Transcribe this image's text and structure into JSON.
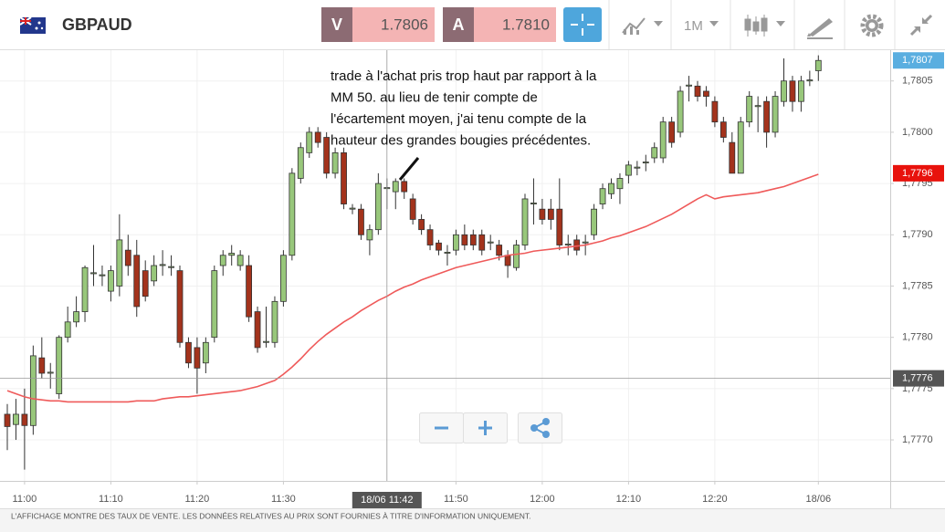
{
  "header": {
    "symbol": "GBPAUD",
    "sell_label": "V",
    "sell_price": "1.7806",
    "buy_label": "A",
    "buy_price": "1.7810",
    "timeframe": "1M"
  },
  "chart_data": {
    "type": "candlestick",
    "x": [
      "10:58",
      "10:59",
      "11:00",
      "11:01",
      "11:02",
      "11:03",
      "11:04",
      "11:05",
      "11:06",
      "11:07",
      "11:08",
      "11:09",
      "11:10",
      "11:11",
      "11:12",
      "11:13",
      "11:14",
      "11:15",
      "11:16",
      "11:17",
      "11:18",
      "11:19",
      "11:20",
      "11:21",
      "11:22",
      "11:23",
      "11:24",
      "11:25",
      "11:26",
      "11:27",
      "11:28",
      "11:29",
      "11:30",
      "11:31",
      "11:32",
      "11:33",
      "11:34",
      "11:35",
      "11:36",
      "11:37",
      "11:38",
      "11:39",
      "11:40",
      "11:41",
      "11:42",
      "11:43",
      "11:44",
      "11:45",
      "11:46",
      "11:47",
      "11:48",
      "11:49",
      "11:50",
      "11:51",
      "11:52",
      "11:53",
      "11:54",
      "11:55",
      "11:56",
      "11:57",
      "11:58",
      "11:59",
      "12:00",
      "12:01",
      "12:02",
      "12:03",
      "12:04",
      "12:05",
      "12:06",
      "12:07",
      "12:08",
      "12:09",
      "12:10",
      "12:11",
      "12:12",
      "12:13",
      "12:14",
      "12:15",
      "12:16",
      "12:17",
      "12:18",
      "12:19",
      "12:20",
      "12:21",
      "12:22",
      "12:23",
      "12:24",
      "12:25",
      "12:26",
      "12:27",
      "12:28",
      "12:29",
      "12:30",
      "12:31",
      "12:32"
    ],
    "open": [
      1.77725,
      1.77715,
      1.77725,
      1.77714,
      1.7778,
      1.77765,
      1.77745,
      1.778,
      1.77815,
      1.77825,
      1.77862,
      1.7786,
      1.77845,
      1.7785,
      1.77885,
      1.7788,
      1.77865,
      1.77855,
      1.7787,
      1.77868,
      1.77865,
      1.77795,
      1.7779,
      1.77775,
      1.778,
      1.7787,
      1.7788,
      1.7787,
      1.7787,
      1.77825,
      1.77795,
      1.77795,
      1.77835,
      1.7788,
      1.77955,
      1.7798,
      1.78,
      1.77995,
      1.7796,
      1.7798,
      1.77925,
      1.77925,
      1.77895,
      1.77905,
      1.77945,
      1.77942,
      1.77952,
      1.77935,
      1.77915,
      1.77905,
      1.77892,
      1.77882,
      1.77885,
      1.779,
      1.779,
      1.779,
      1.77892,
      1.7789,
      1.7788,
      1.77868,
      1.7789,
      1.7793,
      1.77925,
      1.77925,
      1.77925,
      1.7789,
      1.77895,
      1.77892,
      1.779,
      1.7793,
      1.7794,
      1.77945,
      1.77958,
      1.77965,
      1.7797,
      1.77975,
      1.77975,
      1.7801,
      1.78,
      1.78045,
      1.78045,
      1.7804,
      1.7803,
      1.7801,
      1.7799,
      1.7796,
      1.7801,
      1.78025,
      1.7803,
      1.78,
      1.7803,
      1.7805,
      1.7803,
      1.7805,
      1.7806
    ],
    "high": [
      1.77735,
      1.7774,
      1.7775,
      1.77792,
      1.778,
      1.77775,
      1.77802,
      1.7783,
      1.7784,
      1.7787,
      1.7789,
      1.7787,
      1.7787,
      1.7792,
      1.779,
      1.77895,
      1.77875,
      1.7788,
      1.77885,
      1.7788,
      1.7787,
      1.778,
      1.778,
      1.778,
      1.7787,
      1.77885,
      1.7789,
      1.77885,
      1.7788,
      1.7783,
      1.7783,
      1.7784,
      1.77885,
      1.77965,
      1.7799,
      1.78005,
      1.78005,
      1.78,
      1.77985,
      1.77985,
      1.7793,
      1.7793,
      1.7791,
      1.7796,
      1.77955,
      1.77955,
      1.77955,
      1.7794,
      1.7792,
      1.7791,
      1.77895,
      1.7789,
      1.77905,
      1.7791,
      1.77905,
      1.77905,
      1.779,
      1.77895,
      1.77885,
      1.77895,
      1.7794,
      1.77955,
      1.77935,
      1.77935,
      1.77955,
      1.779,
      1.779,
      1.779,
      1.7793,
      1.7795,
      1.77955,
      1.7796,
      1.77972,
      1.77972,
      1.77978,
      1.7799,
      1.78015,
      1.78015,
      1.78045,
      1.78055,
      1.7805,
      1.78045,
      1.78035,
      1.78015,
      1.78,
      1.78015,
      1.7804,
      1.78035,
      1.78035,
      1.7804,
      1.78072,
      1.78055,
      1.78055,
      1.7806,
      1.78075
    ],
    "low": [
      1.7769,
      1.777,
      1.77671,
      1.77705,
      1.7776,
      1.7775,
      1.7774,
      1.77795,
      1.7781,
      1.77815,
      1.7785,
      1.7785,
      1.77835,
      1.7784,
      1.7786,
      1.7782,
      1.77835,
      1.7785,
      1.7786,
      1.7786,
      1.7779,
      1.7777,
      1.77745,
      1.77765,
      1.77795,
      1.7786,
      1.7787,
      1.77865,
      1.77815,
      1.77785,
      1.7779,
      1.7779,
      1.7783,
      1.77875,
      1.7795,
      1.77975,
      1.77985,
      1.77955,
      1.77955,
      1.77925,
      1.7792,
      1.77895,
      1.7788,
      1.779,
      1.77925,
      1.77925,
      1.77935,
      1.7791,
      1.779,
      1.77885,
      1.7788,
      1.7787,
      1.7788,
      1.77885,
      1.77885,
      1.7788,
      1.77885,
      1.77875,
      1.77858,
      1.77865,
      1.77885,
      1.7791,
      1.7791,
      1.77905,
      1.77885,
      1.7788,
      1.7788,
      1.7788,
      1.77895,
      1.77925,
      1.77935,
      1.7793,
      1.7795,
      1.77958,
      1.77962,
      1.7797,
      1.7797,
      1.77985,
      1.77995,
      1.7803,
      1.7803,
      1.78025,
      1.78005,
      1.7799,
      1.7796,
      1.7796,
      1.78005,
      1.78,
      1.77985,
      1.77995,
      1.78025,
      1.7802,
      1.7802,
      1.78045,
      1.7805
    ],
    "close": [
      1.77713,
      1.77725,
      1.77714,
      1.77782,
      1.77765,
      1.77766,
      1.778,
      1.77815,
      1.77825,
      1.77868,
      1.77863,
      1.77861,
      1.77865,
      1.77895,
      1.7787,
      1.7783,
      1.7784,
      1.7787,
      1.77871,
      1.77869,
      1.77795,
      1.77775,
      1.7777,
      1.77795,
      1.77865,
      1.7788,
      1.77882,
      1.7788,
      1.7782,
      1.7779,
      1.77796,
      1.77835,
      1.7788,
      1.7796,
      1.77985,
      1.78,
      1.7799,
      1.7796,
      1.7798,
      1.7793,
      1.77926,
      1.779,
      1.77905,
      1.7795,
      1.77946,
      1.77952,
      1.77942,
      1.77915,
      1.77905,
      1.7789,
      1.77885,
      1.77883,
      1.779,
      1.7789,
      1.7789,
      1.77885,
      1.77893,
      1.7788,
      1.7787,
      1.7789,
      1.77935,
      1.77931,
      1.77915,
      1.77915,
      1.7789,
      1.77891,
      1.77885,
      1.77893,
      1.77925,
      1.77945,
      1.7795,
      1.77955,
      1.77968,
      1.77966,
      1.77971,
      1.77985,
      1.7801,
      1.7799,
      1.7804,
      1.78046,
      1.78035,
      1.78035,
      1.7801,
      1.77995,
      1.7796,
      1.7801,
      1.78035,
      1.78026,
      1.78,
      1.78035,
      1.7805,
      1.7803,
      1.7805,
      1.78051,
      1.7807
    ],
    "up_color": "#98c77b",
    "down_color": "#a3331c",
    "ma": {
      "color": "#ef5a5a",
      "values": [
        1.77748,
        1.77745,
        1.77742,
        1.7774,
        1.77739,
        1.77738,
        1.77738,
        1.77737,
        1.77737,
        1.77737,
        1.77737,
        1.77737,
        1.77737,
        1.77737,
        1.77737,
        1.77738,
        1.77738,
        1.77738,
        1.7774,
        1.77741,
        1.77742,
        1.77742,
        1.77743,
        1.77744,
        1.77745,
        1.77746,
        1.77747,
        1.77748,
        1.7775,
        1.77752,
        1.77755,
        1.77758,
        1.77764,
        1.77771,
        1.77779,
        1.77788,
        1.77796,
        1.77803,
        1.77809,
        1.77815,
        1.7782,
        1.77826,
        1.77831,
        1.77836,
        1.7784,
        1.77845,
        1.77849,
        1.77852,
        1.77856,
        1.77859,
        1.77862,
        1.77865,
        1.77868,
        1.7787,
        1.77872,
        1.77874,
        1.77876,
        1.77878,
        1.7788,
        1.77881,
        1.77882,
        1.77884,
        1.77885,
        1.77886,
        1.77887,
        1.77888,
        1.77889,
        1.7789,
        1.77892,
        1.77894,
        1.77897,
        1.77899,
        1.77902,
        1.77905,
        1.77908,
        1.77912,
        1.77916,
        1.7792,
        1.77925,
        1.7793,
        1.77935,
        1.77939,
        1.77935,
        1.77937,
        1.77938,
        1.77939,
        1.7794,
        1.77941,
        1.77943,
        1.77945,
        1.77947,
        1.7795,
        1.77953,
        1.77956,
        1.77959
      ]
    },
    "ylim": [
      1.7766,
      1.7808
    ],
    "yticks": [
      {
        "value": 1.777,
        "label": "1,7770"
      },
      {
        "value": 1.7775,
        "label": "1,7775"
      },
      {
        "value": 1.778,
        "label": "1,7780"
      },
      {
        "value": 1.7785,
        "label": "1,7785"
      },
      {
        "value": 1.779,
        "label": "1,7790"
      },
      {
        "value": 1.7795,
        "label": "1,7795"
      },
      {
        "value": 1.78,
        "label": "1,7800"
      },
      {
        "value": 1.7805,
        "label": "1,7805"
      }
    ],
    "xticks": [
      "11:00",
      "11:10",
      "11:20",
      "11:30",
      "11:50",
      "12:00",
      "12:10",
      "12:20",
      {
        "value": "12:32",
        "label": "18/06"
      }
    ],
    "grid": true,
    "price_tags": [
      {
        "value": 1.7807,
        "label": "1,7807",
        "color": "#5aaee0"
      },
      {
        "value": 1.7796,
        "label": "1,7796",
        "color": "#e8120c"
      }
    ],
    "crosshair": {
      "x": "11:42",
      "x_label": "18/06 11:42",
      "y": 1.7776,
      "y_label": "1,7776"
    },
    "annotation": [
      "trade à l'achat pris trop haut par rapport à la",
      "MM 50.  au lieu de tenir compte de",
      "l'écartement moyen, j'ai tenu compte de la",
      "hauteur des grandes bougies précédentes."
    ]
  },
  "footer": {
    "disclaimer": "L'AFFICHAGE MONTRE DES TAUX DE VENTE. LES DONNÉES RELATIVES AU PRIX SONT FOURNIES À TITRE D'INFORMATION UNIQUEMENT."
  }
}
